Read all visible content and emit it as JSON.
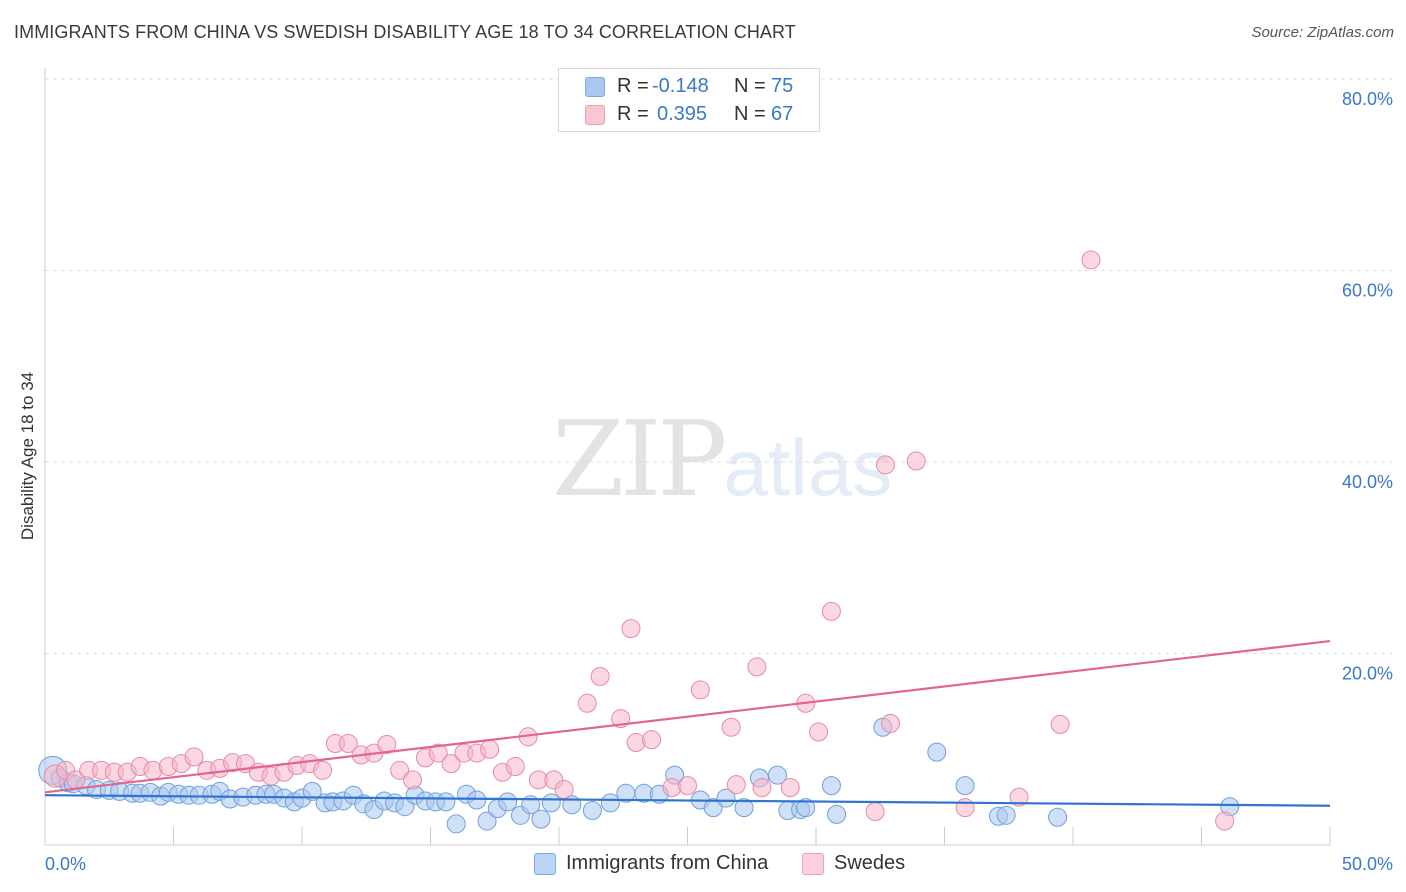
{
  "title": "IMMIGRANTS FROM CHINA VS SWEDISH DISABILITY AGE 18 TO 34 CORRELATION CHART",
  "source": "Source: ZipAtlas.com",
  "watermark": {
    "zip": "ZIP",
    "atlas": "atlas"
  },
  "legend_top": [
    {
      "r_label": "R =",
      "r_value": "-0.148",
      "n_label": "N =",
      "n_value": "75",
      "color": "#a9c7f0"
    },
    {
      "r_label": "R =",
      "r_value": "0.395",
      "n_label": "N =",
      "n_value": "67",
      "color": "#f5b6c8"
    }
  ],
  "legend_bottom": [
    {
      "label": "Immigrants from China",
      "color": "#a9c7f0"
    },
    {
      "label": "Swedes",
      "color": "#f5b6c8"
    }
  ],
  "chart_data": {
    "type": "scatter",
    "title": "IMMIGRANTS FROM CHINA VS SWEDISH DISABILITY AGE 18 TO 34 CORRELATION CHART",
    "xlabel": "",
    "ylabel": "Disability Age 18 to 34",
    "xlim": [
      0,
      50
    ],
    "ylim": [
      0,
      80
    ],
    "x_tick_labels": [
      "0.0%",
      "50.0%"
    ],
    "y_ticks": [
      20,
      40,
      60,
      80
    ],
    "y_tick_labels": [
      "20.0%",
      "40.0%",
      "60.0%",
      "80.0%"
    ],
    "grid": true,
    "series": [
      {
        "name": "Immigrants from China",
        "color": "#6fa0de",
        "fill": "#a9c7f0",
        "trend": {
          "x": [
            0,
            50
          ],
          "y": [
            5.2,
            4.1
          ]
        },
        "points": [
          [
            0.3,
            7.8
          ],
          [
            0.6,
            7.0
          ],
          [
            0.9,
            6.5
          ],
          [
            1.1,
            6.4
          ],
          [
            1.6,
            6.2
          ],
          [
            2.0,
            5.8
          ],
          [
            2.5,
            5.7
          ],
          [
            2.9,
            5.6
          ],
          [
            3.4,
            5.4
          ],
          [
            3.7,
            5.4
          ],
          [
            4.1,
            5.5
          ],
          [
            4.5,
            5.1
          ],
          [
            4.8,
            5.5
          ],
          [
            5.2,
            5.3
          ],
          [
            5.6,
            5.2
          ],
          [
            6.0,
            5.2
          ],
          [
            6.5,
            5.3
          ],
          [
            6.8,
            5.6
          ],
          [
            7.2,
            4.8
          ],
          [
            7.7,
            5.0
          ],
          [
            8.2,
            5.2
          ],
          [
            8.6,
            5.3
          ],
          [
            8.9,
            5.3
          ],
          [
            9.3,
            4.9
          ],
          [
            9.7,
            4.5
          ],
          [
            10.0,
            4.9
          ],
          [
            10.4,
            5.6
          ],
          [
            10.9,
            4.4
          ],
          [
            11.2,
            4.5
          ],
          [
            11.6,
            4.6
          ],
          [
            12.0,
            5.2
          ],
          [
            12.4,
            4.3
          ],
          [
            12.8,
            3.7
          ],
          [
            13.2,
            4.6
          ],
          [
            13.6,
            4.4
          ],
          [
            14.0,
            4.0
          ],
          [
            14.4,
            5.2
          ],
          [
            14.8,
            4.6
          ],
          [
            15.2,
            4.5
          ],
          [
            15.6,
            4.5
          ],
          [
            16.0,
            2.2
          ],
          [
            16.4,
            5.3
          ],
          [
            16.8,
            4.7
          ],
          [
            17.2,
            2.5
          ],
          [
            17.6,
            3.8
          ],
          [
            18.0,
            4.5
          ],
          [
            18.5,
            3.1
          ],
          [
            18.9,
            4.2
          ],
          [
            19.3,
            2.7
          ],
          [
            19.7,
            4.4
          ],
          [
            20.5,
            4.2
          ],
          [
            21.3,
            3.6
          ],
          [
            22.0,
            4.4
          ],
          [
            22.6,
            5.4
          ],
          [
            23.3,
            5.4
          ],
          [
            23.9,
            5.3
          ],
          [
            24.5,
            7.3
          ],
          [
            25.5,
            4.7
          ],
          [
            26.0,
            3.9
          ],
          [
            26.5,
            4.9
          ],
          [
            27.2,
            3.9
          ],
          [
            27.8,
            7.0
          ],
          [
            28.5,
            7.3
          ],
          [
            28.9,
            3.6
          ],
          [
            29.4,
            3.7
          ],
          [
            29.6,
            3.9
          ],
          [
            30.6,
            6.2
          ],
          [
            30.8,
            3.2
          ],
          [
            32.6,
            12.3
          ],
          [
            34.7,
            9.7
          ],
          [
            35.8,
            6.2
          ],
          [
            37.1,
            3.0
          ],
          [
            37.4,
            3.1
          ],
          [
            39.4,
            2.9
          ],
          [
            46.1,
            4.0
          ]
        ]
      },
      {
        "name": "Swedes",
        "color": "#e88aa6",
        "fill": "#f5b6c8",
        "trend": {
          "x": [
            0,
            50
          ],
          "y": [
            5.5,
            21.3
          ]
        },
        "points": [
          [
            0.4,
            7.2
          ],
          [
            0.8,
            7.8
          ],
          [
            1.2,
            6.8
          ],
          [
            1.7,
            7.8
          ],
          [
            2.2,
            7.8
          ],
          [
            2.7,
            7.6
          ],
          [
            3.2,
            7.6
          ],
          [
            3.7,
            8.2
          ],
          [
            4.2,
            7.8
          ],
          [
            4.8,
            8.2
          ],
          [
            5.3,
            8.5
          ],
          [
            5.8,
            9.2
          ],
          [
            6.3,
            7.8
          ],
          [
            6.8,
            8.0
          ],
          [
            7.3,
            8.6
          ],
          [
            7.8,
            8.5
          ],
          [
            8.3,
            7.6
          ],
          [
            8.8,
            7.2
          ],
          [
            9.3,
            7.6
          ],
          [
            9.8,
            8.3
          ],
          [
            10.3,
            8.5
          ],
          [
            10.8,
            7.8
          ],
          [
            11.3,
            10.6
          ],
          [
            11.8,
            10.6
          ],
          [
            12.3,
            9.4
          ],
          [
            12.8,
            9.6
          ],
          [
            13.3,
            10.5
          ],
          [
            13.8,
            7.8
          ],
          [
            14.3,
            6.8
          ],
          [
            14.8,
            9.1
          ],
          [
            15.3,
            9.6
          ],
          [
            15.8,
            8.5
          ],
          [
            16.3,
            9.6
          ],
          [
            16.8,
            9.6
          ],
          [
            17.3,
            10.0
          ],
          [
            17.8,
            7.6
          ],
          [
            18.3,
            8.2
          ],
          [
            18.8,
            11.3
          ],
          [
            19.2,
            6.8
          ],
          [
            19.8,
            6.8
          ],
          [
            20.2,
            5.8
          ],
          [
            21.1,
            14.8
          ],
          [
            21.6,
            17.6
          ],
          [
            22.4,
            13.2
          ],
          [
            22.8,
            22.6
          ],
          [
            23.0,
            10.7
          ],
          [
            23.6,
            11.0
          ],
          [
            24.4,
            6.0
          ],
          [
            25.0,
            6.2
          ],
          [
            25.5,
            16.2
          ],
          [
            26.7,
            12.3
          ],
          [
            26.9,
            6.3
          ],
          [
            27.7,
            18.6
          ],
          [
            27.9,
            6.0
          ],
          [
            29.0,
            6.0
          ],
          [
            29.6,
            14.8
          ],
          [
            30.1,
            11.8
          ],
          [
            30.6,
            24.4
          ],
          [
            32.3,
            3.5
          ],
          [
            32.7,
            39.7
          ],
          [
            32.9,
            12.7
          ],
          [
            33.9,
            40.1
          ],
          [
            35.8,
            3.9
          ],
          [
            37.9,
            5.0
          ],
          [
            39.5,
            12.6
          ],
          [
            40.7,
            61.1
          ],
          [
            45.9,
            2.5
          ]
        ]
      }
    ]
  }
}
